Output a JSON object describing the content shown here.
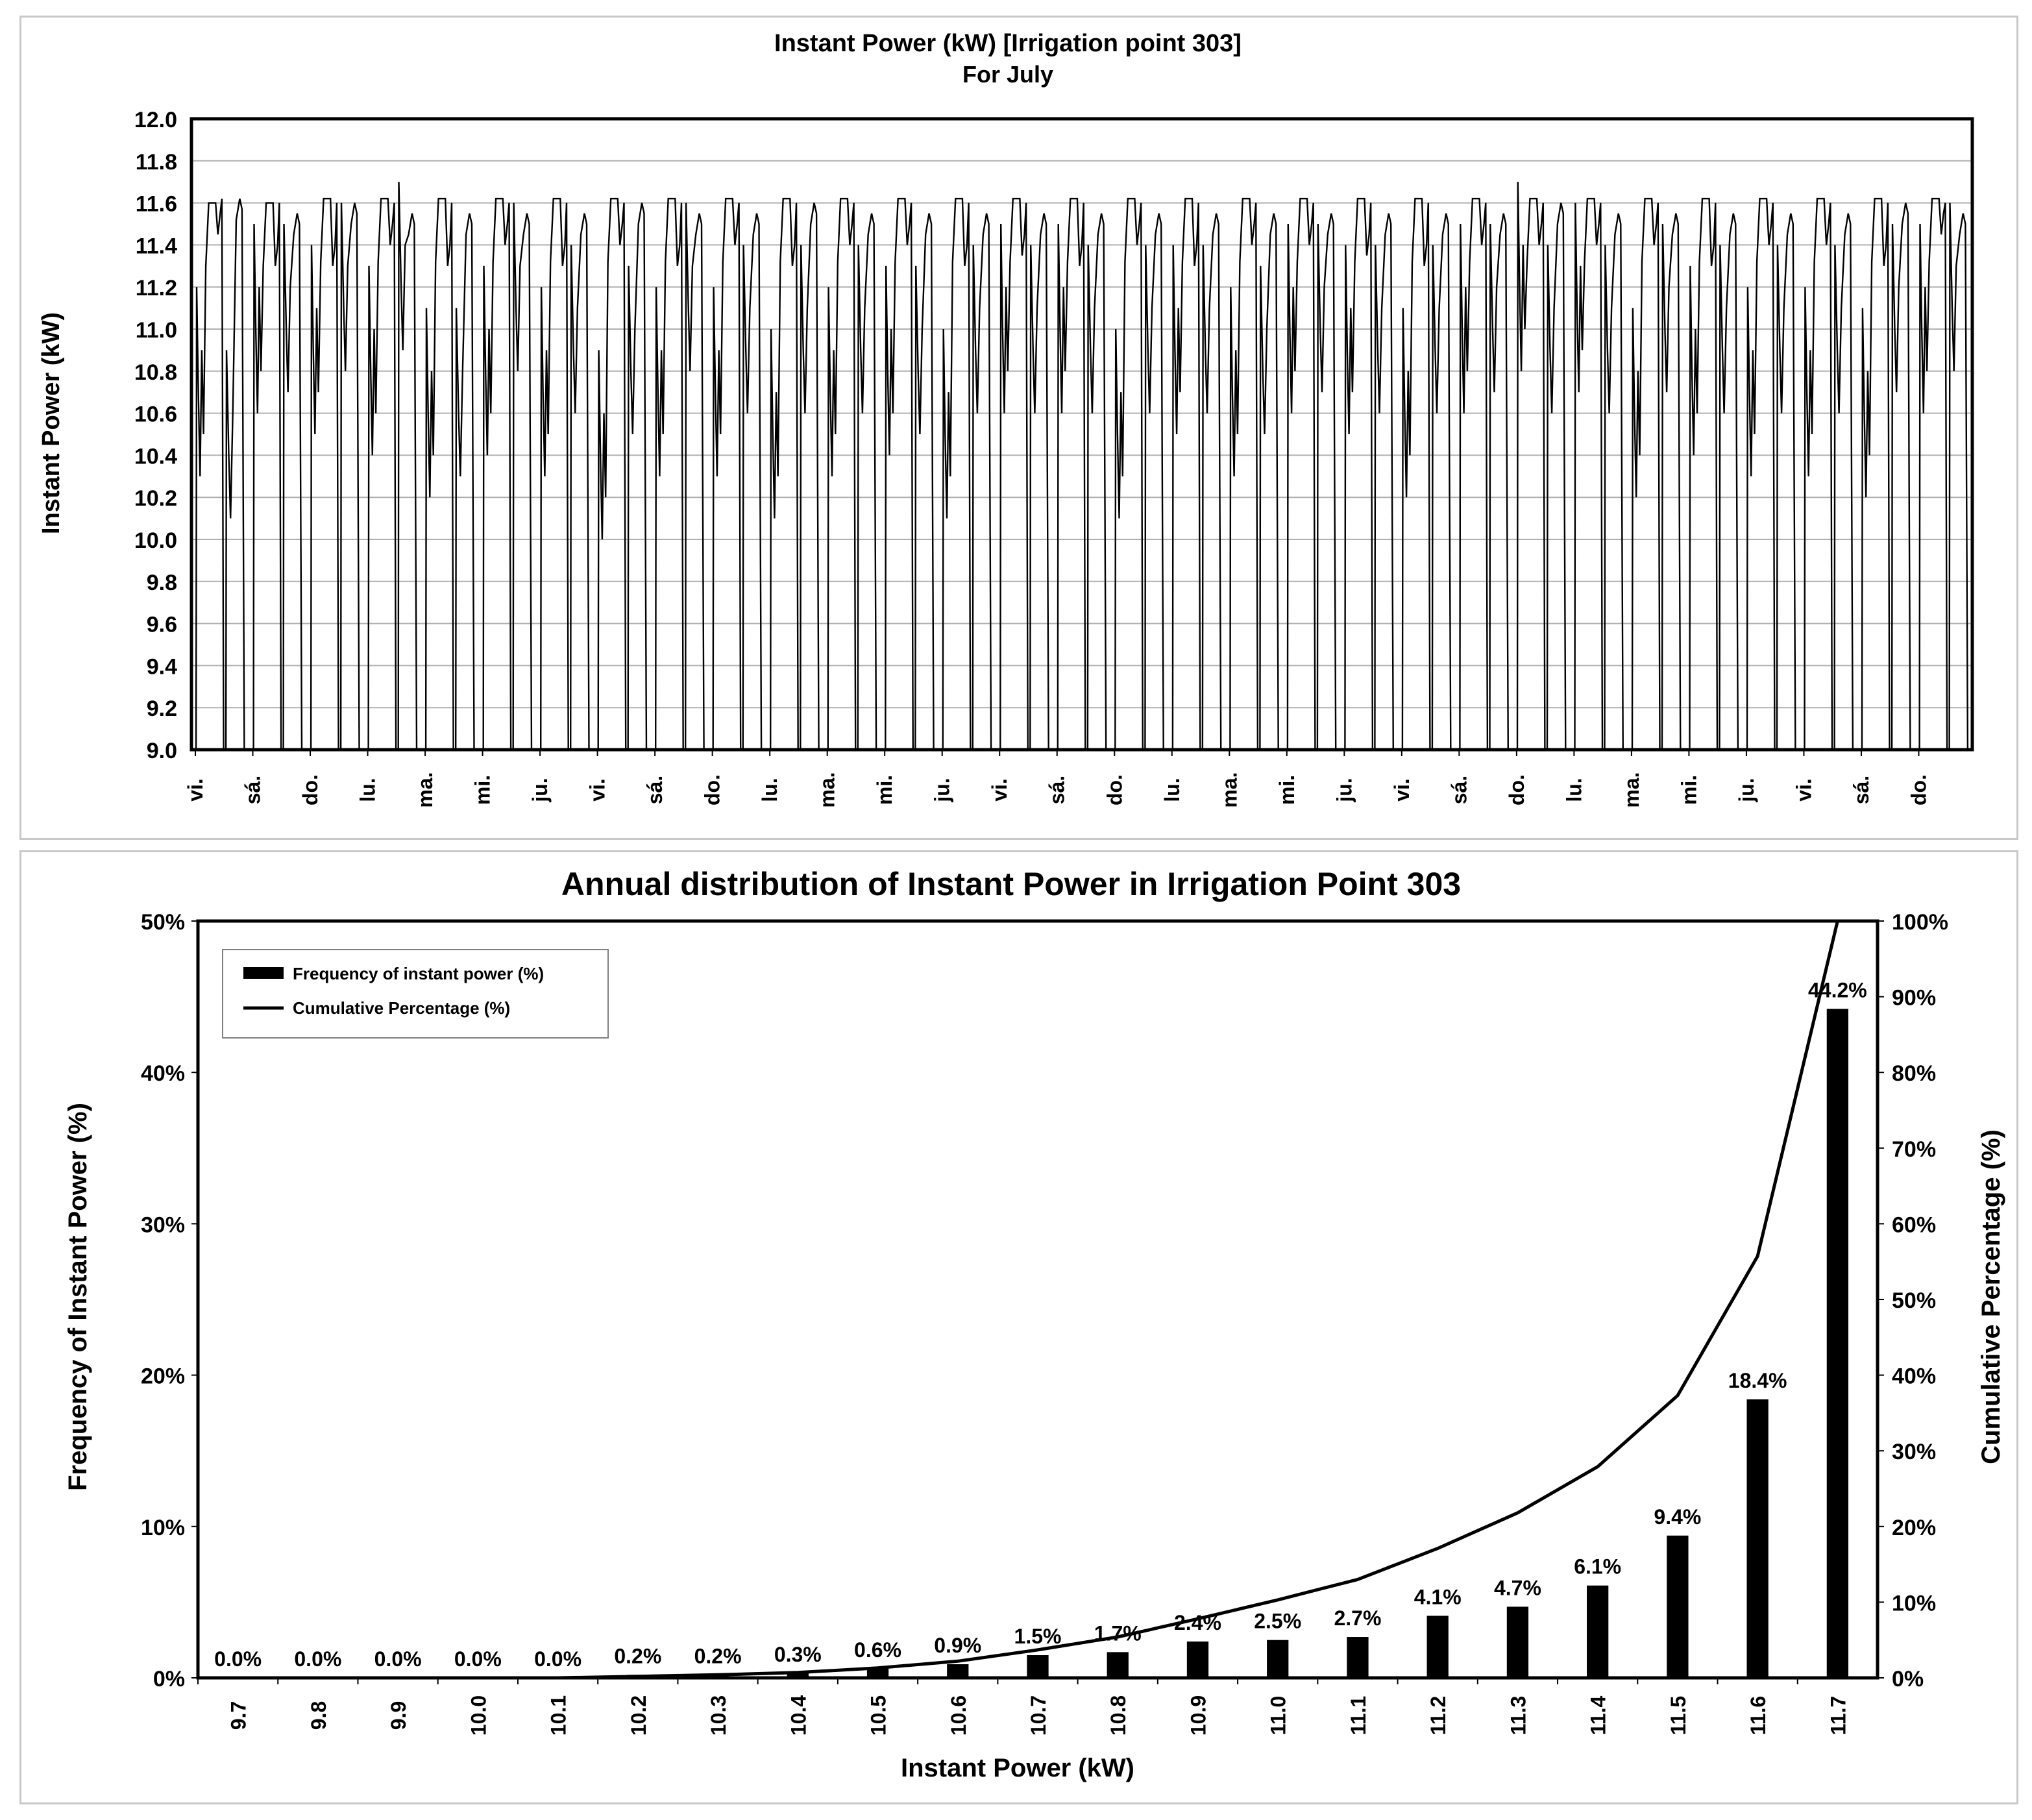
{
  "chart_data": [
    {
      "type": "line",
      "title": "Instant Power (kW) [Irrigation point 303]",
      "subtitle": "For July",
      "ylabel": "Instant Power (kW)",
      "xlabel": "",
      "ylim": [
        9.0,
        12.0
      ],
      "y_ticks": [
        "12.0",
        "11.8",
        "11.6",
        "11.4",
        "11.2",
        "11.0",
        "10.8",
        "10.6",
        "10.4",
        "10.2",
        "10.0",
        "9.8",
        "9.6",
        "9.4",
        "9.2",
        "9.0"
      ],
      "x_tick_labels": [
        "vi.",
        "sá.",
        "do.",
        "lu.",
        "ma.",
        "mi.",
        "ju.",
        "vi.",
        "sá.",
        "do.",
        "lu.",
        "ma.",
        "mi.",
        "ju.",
        "vi.",
        "sá.",
        "do.",
        "lu.",
        "ma.",
        "mi.",
        "ju.",
        "vi.",
        "sá.",
        "do.",
        "lu.",
        "ma.",
        "mi.",
        "ju.",
        "vi.",
        "sá.",
        "do."
      ],
      "days": 31,
      "grid": true,
      "series": [
        {
          "values": [
            [
              10.3,
              11.6,
              11.45,
              11.62,
              10.1,
              11.62
            ],
            [
              10.6,
              11.6,
              11.3,
              11.6,
              10.7,
              11.55
            ],
            [
              10.5,
              11.62,
              11.3,
              11.6,
              10.8,
              11.6
            ],
            [
              10.4,
              11.62,
              11.4,
              11.6,
              10.9,
              11.55
            ],
            [
              10.2,
              11.62,
              11.3,
              11.6,
              10.3,
              11.55
            ],
            [
              10.4,
              11.62,
              11.4,
              11.6,
              10.8,
              11.55
            ],
            [
              10.3,
              11.62,
              11.3,
              11.6,
              10.6,
              11.55
            ],
            [
              10.0,
              11.62,
              11.4,
              11.6,
              10.5,
              11.6
            ],
            [
              10.3,
              11.62,
              11.3,
              11.6,
              10.8,
              11.55
            ],
            [
              10.3,
              11.62,
              11.4,
              11.6,
              10.6,
              11.55
            ],
            [
              10.1,
              11.62,
              11.3,
              11.6,
              10.6,
              11.6
            ],
            [
              10.3,
              11.62,
              11.4,
              11.6,
              10.6,
              11.55
            ],
            [
              10.4,
              11.62,
              11.4,
              11.6,
              10.5,
              11.55
            ],
            [
              10.1,
              11.62,
              11.3,
              11.6,
              10.6,
              11.55
            ],
            [
              10.6,
              11.62,
              11.35,
              11.6,
              10.6,
              11.55
            ],
            [
              10.6,
              11.62,
              11.3,
              11.6,
              10.6,
              11.55
            ],
            [
              10.1,
              11.62,
              11.4,
              11.6,
              10.6,
              11.55
            ],
            [
              10.5,
              11.62,
              11.3,
              11.6,
              10.6,
              11.55
            ],
            [
              10.3,
              11.62,
              11.4,
              11.6,
              10.5,
              11.55
            ],
            [
              10.6,
              11.62,
              11.4,
              11.6,
              10.7,
              11.55
            ],
            [
              10.5,
              11.62,
              11.35,
              11.6,
              10.6,
              11.55
            ],
            [
              10.2,
              11.62,
              11.3,
              11.6,
              10.6,
              11.55
            ],
            [
              10.6,
              11.62,
              11.4,
              11.6,
              10.7,
              11.55
            ],
            [
              10.8,
              11.62,
              11.4,
              11.6,
              10.6,
              11.6
            ],
            [
              10.7,
              11.62,
              11.4,
              11.6,
              10.6,
              11.55
            ],
            [
              10.2,
              11.62,
              11.4,
              11.6,
              10.7,
              11.55
            ],
            [
              10.4,
              11.62,
              11.3,
              11.6,
              10.6,
              11.55
            ],
            [
              10.3,
              11.62,
              11.4,
              11.6,
              10.6,
              11.55
            ],
            [
              10.3,
              11.62,
              11.4,
              11.6,
              10.6,
              11.55
            ],
            [
              10.2,
              11.62,
              11.3,
              11.6,
              10.7,
              11.6
            ],
            [
              10.6,
              11.62,
              11.45,
              11.6,
              10.8,
              11.55
            ]
          ]
        }
      ]
    },
    {
      "type": "bar",
      "title": "Annual distribution of Instant Power in Irrigation Point 303",
      "xlabel": "Instant Power (kW)",
      "ylabel": "Frequency of Instant Power (%)",
      "y2label": "Cumulative Percentage (%)",
      "ylim": [
        0,
        50
      ],
      "y2lim": [
        0,
        100
      ],
      "y_ticks": [
        "50%",
        "40%",
        "30%",
        "20%",
        "10%",
        "0%"
      ],
      "y2_ticks": [
        "100%",
        "90%",
        "80%",
        "70%",
        "60%",
        "50%",
        "40%",
        "30%",
        "20%",
        "10%",
        "0%"
      ],
      "categories": [
        "9.7",
        "9.8",
        "9.9",
        "10.0",
        "10.1",
        "10.2",
        "10.3",
        "10.4",
        "10.5",
        "10.6",
        "10.7",
        "10.8",
        "10.9",
        "11.0",
        "11.1",
        "11.2",
        "11.3",
        "11.4",
        "11.5",
        "11.6",
        "11.7"
      ],
      "legend_position": "top-left",
      "series": [
        {
          "name": "Frequency of instant power (%)",
          "values": [
            0.0,
            0.0,
            0.0,
            0.0,
            0.0,
            0.2,
            0.2,
            0.3,
            0.6,
            0.9,
            1.5,
            1.7,
            2.4,
            2.5,
            2.7,
            4.1,
            4.7,
            6.1,
            9.4,
            18.4,
            44.2
          ],
          "labels": [
            "0.0%",
            "0.0%",
            "0.0%",
            "0.0%",
            "0.0%",
            "0.2%",
            "0.2%",
            "0.3%",
            "0.6%",
            "0.9%",
            "1.5%",
            "1.7%",
            "2.4%",
            "2.5%",
            "2.7%",
            "4.1%",
            "4.7%",
            "6.1%",
            "9.4%",
            "18.4%",
            "44.2%"
          ]
        },
        {
          "name": "Cumulative Percentage (%)",
          "values": [
            0.0,
            0.0,
            0.0,
            0.0,
            0.0,
            0.2,
            0.4,
            0.7,
            1.3,
            2.2,
            3.7,
            5.4,
            7.8,
            10.3,
            13.0,
            17.1,
            21.8,
            27.9,
            37.3,
            55.7,
            100.0
          ]
        }
      ]
    }
  ]
}
